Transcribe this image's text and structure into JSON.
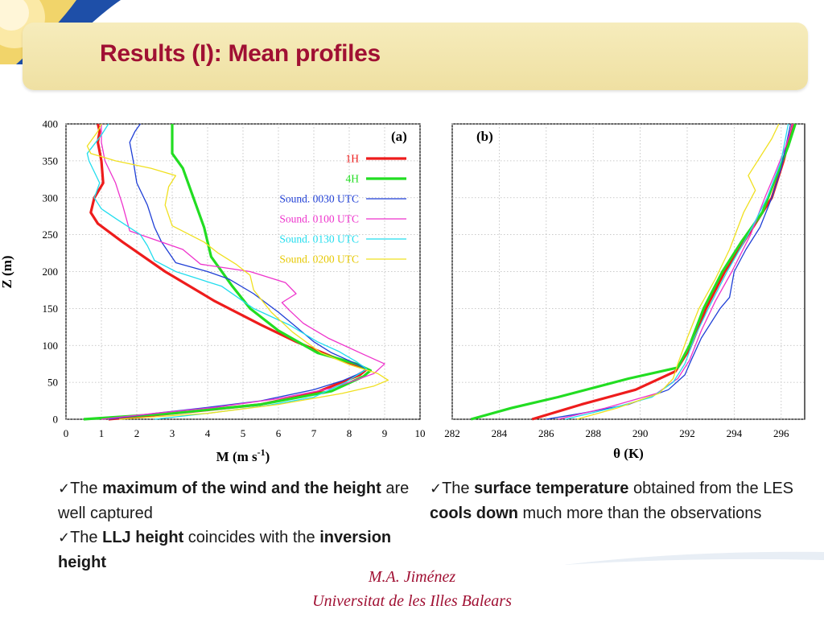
{
  "slide": {
    "title": "Results (I): Mean profiles",
    "footer_author": "M.A. Jiménez",
    "footer_affiliation": "Universitat de les Illes Balears"
  },
  "bullets_left": [
    {
      "parts": [
        {
          "t": "The ",
          "b": false
        },
        {
          "t": "maximum of the wind and the height",
          "b": true
        },
        {
          "t": " are well captured",
          "b": false
        }
      ]
    },
    {
      "parts": [
        {
          "t": "The ",
          "b": false
        },
        {
          "t": "LLJ height",
          "b": true
        },
        {
          "t": " coincides with the ",
          "b": false
        },
        {
          "t": "inversion height",
          "b": true
        }
      ]
    }
  ],
  "bullets_right": [
    {
      "parts": [
        {
          "t": "The ",
          "b": false
        },
        {
          "t": "surface temperature",
          "b": true
        },
        {
          "t": " obtained from the LES ",
          "b": false
        },
        {
          "t": "cools down",
          "b": true
        },
        {
          "t": " much more than the observations",
          "b": false
        }
      ]
    }
  ],
  "chart_data": [
    {
      "type": "line",
      "panel_label": "(a)",
      "xlabel": "M (m s",
      "xlabel_sup": "-1",
      "xlabel_close": ")",
      "ylabel": "Z (m)",
      "xlim": [
        0,
        10
      ],
      "ylim": [
        0,
        400
      ],
      "xticks": [
        0,
        1,
        2,
        3,
        4,
        5,
        6,
        7,
        8,
        9,
        10
      ],
      "yticks": [
        0,
        50,
        100,
        150,
        200,
        250,
        300,
        350,
        400
      ],
      "legend_position": "top-right",
      "series": [
        {
          "name": "1H",
          "color": "#ee1c1c",
          "width": 3.2,
          "points": [
            [
              1.2,
              0
            ],
            [
              3.5,
              10
            ],
            [
              5.5,
              20
            ],
            [
              7,
              35
            ],
            [
              8.3,
              60
            ],
            [
              8.5,
              68
            ],
            [
              7.5,
              85
            ],
            [
              6.5,
              105
            ],
            [
              5.5,
              128
            ],
            [
              4.2,
              160
            ],
            [
              2.8,
              200
            ],
            [
              1.6,
              240
            ],
            [
              0.9,
              265
            ],
            [
              0.7,
              280
            ],
            [
              0.8,
              300
            ],
            [
              1.05,
              320
            ],
            [
              1.0,
              350
            ],
            [
              0.9,
              375
            ],
            [
              0.95,
              390
            ],
            [
              0.9,
              400
            ]
          ]
        },
        {
          "name": "4H",
          "color": "#22dd22",
          "width": 3.2,
          "points": [
            [
              0.5,
              0
            ],
            [
              3,
              8
            ],
            [
              5.5,
              20
            ],
            [
              7.5,
              38
            ],
            [
              8.4,
              58
            ],
            [
              8.6,
              66
            ],
            [
              8.2,
              75
            ],
            [
              7.1,
              90
            ],
            [
              6,
              120
            ],
            [
              5.2,
              150
            ],
            [
              4.7,
              180
            ],
            [
              4.1,
              220
            ],
            [
              3.9,
              260
            ],
            [
              3.6,
              300
            ],
            [
              3.3,
              340
            ],
            [
              3.0,
              360
            ],
            [
              3.0,
              400
            ]
          ]
        },
        {
          "name": "Sound. 0030 UTC",
          "color": "#1f3fd6",
          "width": 1.3,
          "points": [
            [
              1.2,
              0
            ],
            [
              2.5,
              8
            ],
            [
              4,
              16
            ],
            [
              5.5,
              25
            ],
            [
              7,
              40
            ],
            [
              7.8,
              52
            ],
            [
              8.2,
              60
            ],
            [
              8.5,
              68
            ],
            [
              8.2,
              75
            ],
            [
              7.5,
              90
            ],
            [
              7,
              105
            ],
            [
              6.5,
              125
            ],
            [
              6.0,
              145
            ],
            [
              5.3,
              170
            ],
            [
              4.6,
              190
            ],
            [
              4.0,
              200
            ],
            [
              3.1,
              212
            ],
            [
              2.7,
              240
            ],
            [
              2.5,
              260
            ],
            [
              2.3,
              290
            ],
            [
              2.0,
              320
            ],
            [
              1.9,
              350
            ],
            [
              1.8,
              375
            ],
            [
              1.95,
              390
            ],
            [
              2.1,
              400
            ]
          ]
        },
        {
          "name": "Sound. 0100 UTC",
          "color": "#ee33cc",
          "width": 1.3,
          "points": [
            [
              1,
              0
            ],
            [
              2.5,
              8
            ],
            [
              4.2,
              16
            ],
            [
              6,
              28
            ],
            [
              7.5,
              42
            ],
            [
              8.3,
              55
            ],
            [
              8.7,
              62
            ],
            [
              9.0,
              75
            ],
            [
              8.4,
              88
            ],
            [
              7.4,
              110
            ],
            [
              6.7,
              130
            ],
            [
              6.3,
              148
            ],
            [
              6.1,
              158
            ],
            [
              6.5,
              170
            ],
            [
              6.2,
              185
            ],
            [
              5.2,
              200
            ],
            [
              3.8,
              210
            ],
            [
              3.3,
              230
            ],
            [
              2.1,
              250
            ],
            [
              1.8,
              255
            ],
            [
              1.6,
              290
            ],
            [
              1.4,
              320
            ],
            [
              1.1,
              350
            ],
            [
              1.0,
              375
            ],
            [
              1.0,
              400
            ]
          ]
        },
        {
          "name": "Sound. 0130 UTC",
          "color": "#22ddee",
          "width": 1.3,
          "points": [
            [
              2.5,
              0
            ],
            [
              4,
              8
            ],
            [
              5.6,
              18
            ],
            [
              7,
              30
            ],
            [
              7.9,
              50
            ],
            [
              8.5,
              68
            ],
            [
              8.2,
              78
            ],
            [
              7.7,
              92
            ],
            [
              7.1,
              105
            ],
            [
              6.3,
              128
            ],
            [
              5.3,
              150
            ],
            [
              4.4,
              180
            ],
            [
              3.1,
              200
            ],
            [
              2.5,
              215
            ],
            [
              2.3,
              235
            ],
            [
              2.1,
              250
            ],
            [
              1.4,
              272
            ],
            [
              1.0,
              285
            ],
            [
              0.8,
              300
            ],
            [
              0.95,
              320
            ],
            [
              0.65,
              350
            ],
            [
              0.6,
              360
            ],
            [
              1.0,
              385
            ],
            [
              1.2,
              400
            ]
          ]
        },
        {
          "name": "Sound. 0200 UTC",
          "color": "#f0e020",
          "width": 1.3,
          "points": [
            [
              1.5,
              0
            ],
            [
              4,
              8
            ],
            [
              6,
              20
            ],
            [
              7.8,
              35
            ],
            [
              8.7,
              45
            ],
            [
              9.1,
              53
            ],
            [
              8.8,
              62
            ],
            [
              8,
              74
            ],
            [
              7.2,
              90
            ],
            [
              6.4,
              118
            ],
            [
              5.8,
              145
            ],
            [
              5.3,
              175
            ],
            [
              5.2,
              195
            ],
            [
              4.8,
              210
            ],
            [
              4.3,
              225
            ],
            [
              3.9,
              240
            ],
            [
              3.0,
              262
            ],
            [
              2.8,
              290
            ],
            [
              2.9,
              315
            ],
            [
              3.1,
              330
            ],
            [
              2.4,
              340
            ],
            [
              1.4,
              350
            ],
            [
              0.7,
              360
            ],
            [
              0.6,
              370
            ],
            [
              0.9,
              390
            ],
            [
              1.0,
              400
            ]
          ]
        }
      ]
    },
    {
      "type": "line",
      "panel_label": "(b)",
      "xlabel": "θ (K)",
      "xlim": [
        282,
        297
      ],
      "ylim": [
        0,
        400
      ],
      "xticks": [
        282,
        284,
        286,
        288,
        290,
        292,
        294,
        296
      ],
      "series": [
        {
          "color": "#ee1c1c",
          "width": 3.2,
          "points": [
            [
              285.4,
              0
            ],
            [
              287.5,
              20
            ],
            [
              289.8,
              40
            ],
            [
              291.5,
              65
            ],
            [
              292.1,
              95
            ],
            [
              292.8,
              150
            ],
            [
              293.6,
              200
            ],
            [
              294.6,
              250
            ],
            [
              295.6,
              300
            ],
            [
              296.1,
              350
            ],
            [
              296.5,
              400
            ]
          ]
        },
        {
          "color": "#22dd22",
          "width": 3.2,
          "points": [
            [
              282.8,
              0
            ],
            [
              284.5,
              15
            ],
            [
              286.5,
              30
            ],
            [
              289.5,
              55
            ],
            [
              291.6,
              70
            ],
            [
              292.1,
              100
            ],
            [
              292.7,
              150
            ],
            [
              293.5,
              200
            ],
            [
              294.3,
              240
            ],
            [
              295.2,
              280
            ],
            [
              295.8,
              330
            ],
            [
              296.3,
              370
            ],
            [
              296.6,
              400
            ]
          ]
        },
        {
          "color": "#1f3fd6",
          "width": 1.3,
          "points": [
            [
              286,
              0
            ],
            [
              287.5,
              8
            ],
            [
              289.5,
              20
            ],
            [
              291.2,
              40
            ],
            [
              291.9,
              60
            ],
            [
              292.1,
              75
            ],
            [
              292.6,
              110
            ],
            [
              293.4,
              150
            ],
            [
              293.8,
              165
            ],
            [
              294,
              200
            ],
            [
              294.5,
              230
            ],
            [
              295.1,
              260
            ],
            [
              295.6,
              300
            ],
            [
              296,
              340
            ],
            [
              296.4,
              400
            ]
          ]
        },
        {
          "color": "#ee33cc",
          "width": 1.3,
          "points": [
            [
              286.5,
              0
            ],
            [
              288.5,
              15
            ],
            [
              290.7,
              35
            ],
            [
              291.6,
              55
            ],
            [
              292.1,
              80
            ],
            [
              292.6,
              120
            ],
            [
              293.2,
              160
            ],
            [
              293.9,
              200
            ],
            [
              294.7,
              250
            ],
            [
              295.3,
              300
            ],
            [
              295.7,
              330
            ],
            [
              296.2,
              370
            ],
            [
              296.5,
              400
            ]
          ]
        },
        {
          "color": "#22ddee",
          "width": 1.3,
          "points": [
            [
              286.8,
              0
            ],
            [
              288.8,
              15
            ],
            [
              290.5,
              30
            ],
            [
              291.4,
              50
            ],
            [
              291.9,
              75
            ],
            [
              292.3,
              110
            ],
            [
              292.9,
              150
            ],
            [
              293.7,
              200
            ],
            [
              294.6,
              250
            ],
            [
              295.4,
              300
            ],
            [
              296,
              350
            ],
            [
              296.3,
              400
            ]
          ]
        },
        {
          "color": "#f0e020",
          "width": 1.3,
          "points": [
            [
              287.3,
              0
            ],
            [
              289,
              15
            ],
            [
              290.8,
              35
            ],
            [
              291.4,
              55
            ],
            [
              291.6,
              75
            ],
            [
              292,
              110
            ],
            [
              292.5,
              150
            ],
            [
              293.2,
              190
            ],
            [
              293.8,
              230
            ],
            [
              294.4,
              280
            ],
            [
              294.9,
              310
            ],
            [
              294.6,
              330
            ],
            [
              295.6,
              380
            ],
            [
              295.9,
              400
            ]
          ]
        }
      ]
    }
  ]
}
